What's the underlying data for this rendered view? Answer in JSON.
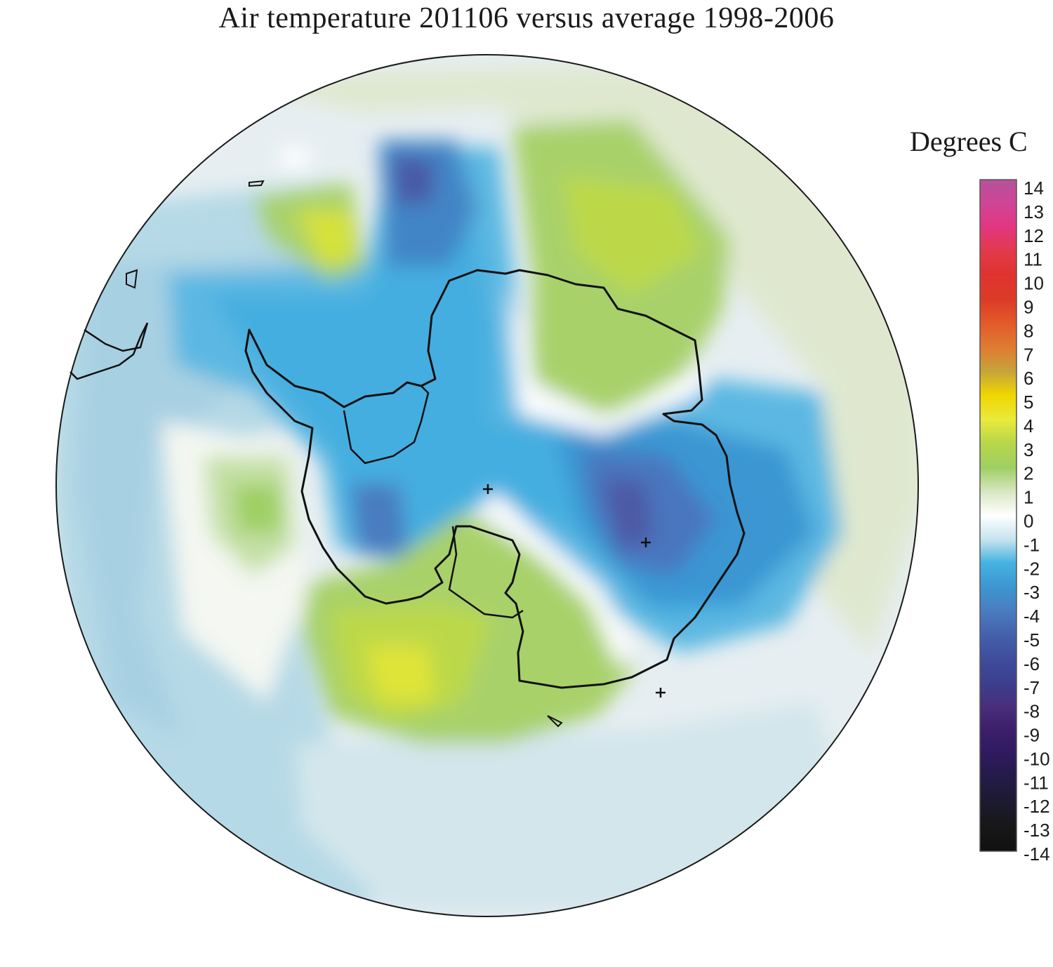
{
  "title": "Air temperature 201106 versus average 1998-2006",
  "legend": {
    "title": "Degrees C",
    "ticks": [
      "14",
      "13",
      "12",
      "11",
      "10",
      "9",
      "8",
      "7",
      "6",
      "5",
      "4",
      "3",
      "2",
      "1",
      "0",
      "-1",
      "-2",
      "-3",
      "-4",
      "-5",
      "-6",
      "-7",
      "-8",
      "-9",
      "-10",
      "-11",
      "-12",
      "-13",
      "-14"
    ],
    "range": [
      -14,
      14
    ],
    "colors": {
      "14": "#b5529a",
      "13": "#cf4597",
      "12": "#e2367f",
      "11": "#e23a4a",
      "10": "#e0332f",
      "9": "#dc3b27",
      "8": "#e25a2a",
      "7": "#e07b33",
      "6": "#c7a43a",
      "5": "#efd600",
      "4": "#eaea3a",
      "3": "#b8d64a",
      "2": "#9fcf63",
      "1": "#d8e6c0",
      "0": "#ffffff",
      "-1": "#c5e3ee",
      "-2": "#45b2e2",
      "-3": "#3d96d0",
      "-4": "#4a7cc0",
      "-5": "#4460ab",
      "-6": "#3e4d9c",
      "-7": "#3b3f8e",
      "-8": "#4a2e7b",
      "-9": "#3b1e6a",
      "-10": "#2f1a5e",
      "-11": "#231b47",
      "-12": "#1c1a2e",
      "-13": "#171717",
      "-14": "#111111"
    }
  },
  "markers": [
    "+",
    "+",
    "+"
  ]
}
